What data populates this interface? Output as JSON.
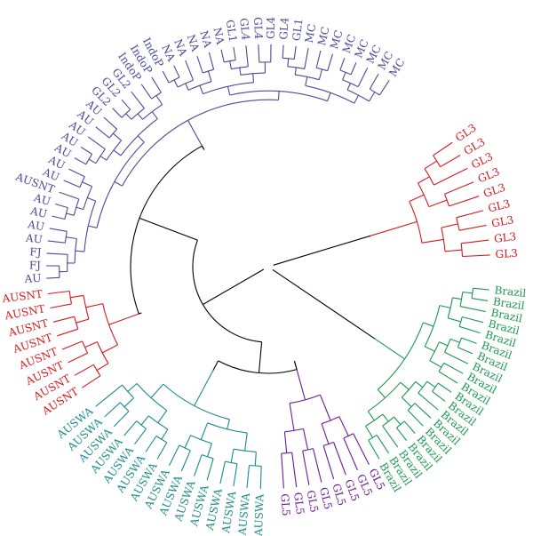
{
  "colors": {
    "trunk": "#000000",
    "red": "#d7191c",
    "blue": "#4a4a9a",
    "green": "#1a9850",
    "purple": "#6a1b9a",
    "teal": "#1b8a8a"
  },
  "clades": [
    {
      "id": "gl3-clade",
      "color_key": "red",
      "labels": [
        "GL3",
        "GL3",
        "GL3",
        "GL3",
        "GL3",
        "GL3",
        "GL3",
        "GL3",
        "GL3"
      ]
    },
    {
      "id": "brazil-clade",
      "color_key": "green",
      "labels": [
        "Brazil",
        "Brazil",
        "Brazil",
        "Brazil",
        "Brazil",
        "Brazil",
        "Brazil",
        "Brazil",
        "Brazil",
        "Brazil",
        "Brazil",
        "Brazil",
        "Brazil",
        "Brazil",
        "Brazil",
        "Brazil",
        "Brazil",
        "Brazil",
        "Brazil",
        "Brazil"
      ]
    },
    {
      "id": "gl5-clade",
      "color_key": "purple",
      "labels": [
        "GL5",
        "GL5",
        "GL5",
        "GL5",
        "GL5",
        "GL5",
        "GL5",
        "GL5"
      ]
    },
    {
      "id": "auswa-clade",
      "color_key": "teal",
      "labels": [
        "AUSWA",
        "AUSWA",
        "AUSWA",
        "AUSWA",
        "AUSWA",
        "AUSWA",
        "AUSWA",
        "AUSWA",
        "AUSWA",
        "AUSWA",
        "AUSWA",
        "AUSWA",
        "AUSWA",
        "AUSWA",
        "AUSWA"
      ]
    },
    {
      "id": "ausnt-clade",
      "color_key": "red",
      "labels": [
        "AUSNT",
        "AUSNT",
        "AUSNT",
        "AUSNT",
        "AUSNT",
        "AUSNT",
        "AUSNT",
        "AUSNT"
      ]
    },
    {
      "id": "au-clade",
      "color_key": "blue",
      "labels": [
        "AU",
        "FJ",
        "FJ",
        "AU",
        "AU",
        "AU",
        "AU",
        "AUSNT",
        "AU",
        "AU",
        "AU",
        "AU",
        "AU",
        "AU",
        "AU",
        "GL2",
        "GL2",
        "GL2",
        "IndoP",
        "IndoP",
        "IndoP",
        "NA",
        "NA",
        "NA",
        "NA",
        "NA",
        "GL1",
        "GL4",
        "GL4",
        "GL4",
        "GL4",
        "GL1",
        "MC",
        "MC",
        "MC",
        "MC",
        "MC",
        "MC",
        "MC",
        "MC"
      ]
    }
  ]
}
